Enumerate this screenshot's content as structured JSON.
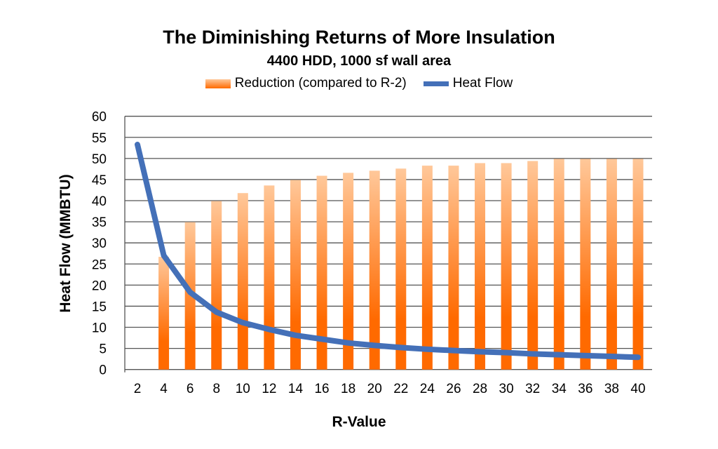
{
  "chart_data": {
    "type": "bar",
    "title": "The Diminishing Returns of More Insulation",
    "subtitle": "4400 HDD, 1000 sf wall area",
    "xlabel": "R-Value",
    "ylabel": "Heat Flow (MMBTU)",
    "ylim": [
      0,
      60
    ],
    "yticks": [
      0,
      5,
      10,
      15,
      20,
      25,
      30,
      35,
      40,
      45,
      50,
      55,
      60
    ],
    "grid": true,
    "legend_placement": "top",
    "categories": [
      "2",
      "4",
      "6",
      "8",
      "10",
      "12",
      "14",
      "16",
      "18",
      "20",
      "22",
      "24",
      "26",
      "28",
      "30",
      "32",
      "34",
      "36",
      "38",
      "40"
    ],
    "series": [
      {
        "name": "Reduction (compared to R-2)",
        "type": "bar",
        "color": "#ff6a00",
        "values": [
          0,
          26.7,
          34.9,
          39.9,
          41.8,
          43.6,
          44.9,
          45.9,
          46.6,
          47.1,
          47.6,
          48.3,
          48.3,
          48.9,
          48.9,
          49.4,
          49.9,
          49.9,
          49.9,
          49.9
        ]
      },
      {
        "name": "Heat Flow",
        "type": "line",
        "color": "#4470b8",
        "values": [
          53.3,
          27.0,
          18.3,
          13.6,
          11.1,
          9.5,
          8.1,
          7.2,
          6.3,
          5.7,
          5.2,
          4.8,
          4.5,
          4.2,
          4.0,
          3.7,
          3.5,
          3.3,
          3.1,
          2.9
        ]
      }
    ]
  }
}
